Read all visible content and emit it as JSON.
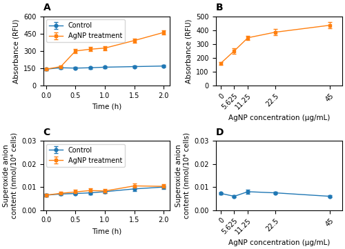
{
  "chart_data": [
    {
      "type": "line",
      "title": "A",
      "xlabel": "Time (h)",
      "ylabel": "Absorbance (RFU)",
      "x": [
        0.0,
        0.25,
        0.5,
        0.75,
        1.0,
        1.5,
        2.0
      ],
      "xlim": [
        -0.05,
        2.1
      ],
      "xticks": [
        0.0,
        0.5,
        1.0,
        1.5,
        2.0
      ],
      "ylim": [
        0,
        600
      ],
      "yticks": [
        0,
        150,
        300,
        450,
        600
      ],
      "legend": "upper left",
      "series": [
        {
          "name": "Control",
          "color": "#1f77b4",
          "marker": "circle",
          "values": [
            143,
            155,
            152,
            155,
            160,
            165,
            170
          ],
          "errors": [
            8,
            8,
            8,
            8,
            8,
            8,
            8
          ]
        },
        {
          "name": "AgNP treatment",
          "color": "#ff7f0e",
          "marker": "square",
          "values": [
            143,
            165,
            300,
            315,
            325,
            390,
            460
          ],
          "errors": [
            8,
            10,
            20,
            18,
            18,
            18,
            18
          ]
        }
      ]
    },
    {
      "type": "line",
      "title": "B",
      "xlabel": "AgNP concentration (µg/mL)",
      "ylabel": "Absorbance (RFU)",
      "x": [
        0,
        5.625,
        11.25,
        22.5,
        45
      ],
      "xlim": [
        -2,
        50
      ],
      "xticks": [
        0,
        5.625,
        11.25,
        22.5,
        45
      ],
      "ylim": [
        0,
        500
      ],
      "yticks": [
        0,
        100,
        200,
        300,
        400,
        500
      ],
      "series": [
        {
          "color": "#ff7f0e",
          "marker": "square",
          "values": [
            160,
            250,
            345,
            385,
            435
          ],
          "errors": [
            12,
            18,
            15,
            22,
            22
          ]
        }
      ]
    },
    {
      "type": "line",
      "title": "C",
      "xlabel": "Time (h)",
      "ylabel": "Superoxide anion\ncontent (nmol/10⁴ cells)",
      "x": [
        0.0,
        0.25,
        0.5,
        0.75,
        1.0,
        1.5,
        2.0
      ],
      "xlim": [
        -0.05,
        2.1
      ],
      "xticks": [
        0.0,
        0.5,
        1.0,
        1.5,
        2.0
      ],
      "ylim": [
        0.0,
        0.03
      ],
      "yticks": [
        {
          "value": 0.0,
          "label": "0.00"
        },
        {
          "value": 0.01,
          "label": "0.01"
        },
        {
          "value": 0.02,
          "label": "0.02"
        },
        {
          "value": 0.03,
          "label": "0.03"
        }
      ],
      "legend": "upper left",
      "series": [
        {
          "name": "Control",
          "color": "#1f77b4",
          "marker": "circle",
          "values": [
            0.0065,
            0.007,
            0.0072,
            0.0075,
            0.008,
            0.0092,
            0.01
          ],
          "errors": [
            0.0005,
            0.0005,
            0.0005,
            0.0006,
            0.0005,
            0.0008,
            0.0007
          ]
        },
        {
          "name": "AgNP treatment",
          "color": "#ff7f0e",
          "marker": "square",
          "values": [
            0.0065,
            0.0073,
            0.0079,
            0.0085,
            0.0083,
            0.0105,
            0.0103
          ],
          "errors": [
            0.0005,
            0.0006,
            0.0009,
            0.0009,
            0.0008,
            0.001,
            0.0008
          ]
        }
      ]
    },
    {
      "type": "line",
      "title": "D",
      "xlabel": "AgNP concentration (µg/mL)",
      "ylabel": "Superoxide anion\ncontent (nmol/10⁴ cells)",
      "x": [
        0,
        5.625,
        11.25,
        22.5,
        45
      ],
      "xlim": [
        -2,
        50
      ],
      "xticks": [
        0,
        5.625,
        11.25,
        22.5,
        45
      ],
      "ylim": [
        0.0,
        0.03
      ],
      "yticks": [
        {
          "value": 0.0,
          "label": "0.00"
        },
        {
          "value": 0.01,
          "label": "0.01"
        },
        {
          "value": 0.02,
          "label": "0.02"
        },
        {
          "value": 0.03,
          "label": "0.03"
        }
      ],
      "series": [
        {
          "color": "#1f77b4",
          "marker": "circle",
          "values": [
            0.0073,
            0.006,
            0.008,
            0.0075,
            0.006
          ],
          "errors": [
            0.0005,
            0.0004,
            0.001,
            0.0005,
            0.0004
          ]
        }
      ]
    }
  ]
}
